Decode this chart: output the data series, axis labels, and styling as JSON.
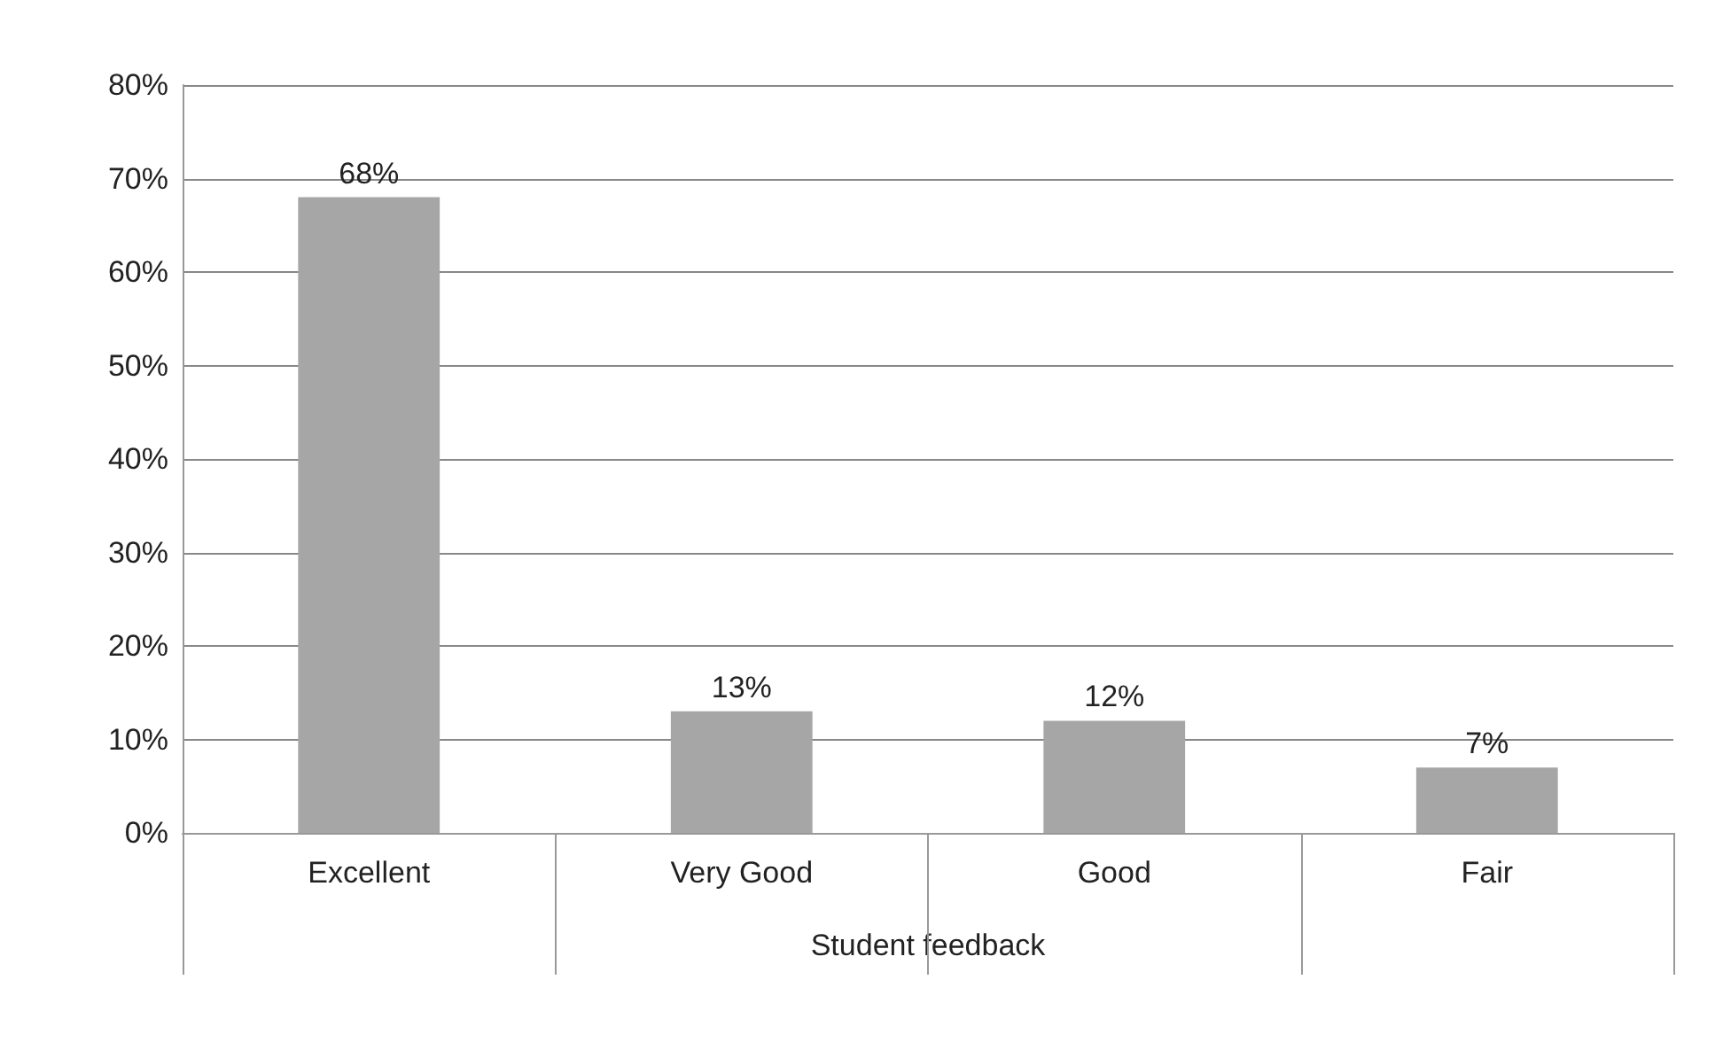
{
  "chart_data": {
    "type": "bar",
    "xlabel": "Student feedback",
    "categories": [
      "Excellent",
      "Very Good",
      "Good",
      "Fair"
    ],
    "values": [
      68,
      13,
      12,
      7
    ],
    "value_labels": [
      "68%",
      "13%",
      "12%",
      "7%"
    ],
    "color": "#a6a6a6",
    "ylim": [
      0,
      80
    ],
    "yticks": [
      {
        "value": 0,
        "label": "0%"
      },
      {
        "value": 10,
        "label": "10%"
      },
      {
        "value": 20,
        "label": "20%"
      },
      {
        "value": 30,
        "label": "30%"
      },
      {
        "value": 40,
        "label": "40%"
      },
      {
        "value": 50,
        "label": "50%"
      },
      {
        "value": 60,
        "label": "60%"
      },
      {
        "value": 70,
        "label": "70%"
      },
      {
        "value": 80,
        "label": "80%"
      }
    ],
    "grid": "y"
  }
}
